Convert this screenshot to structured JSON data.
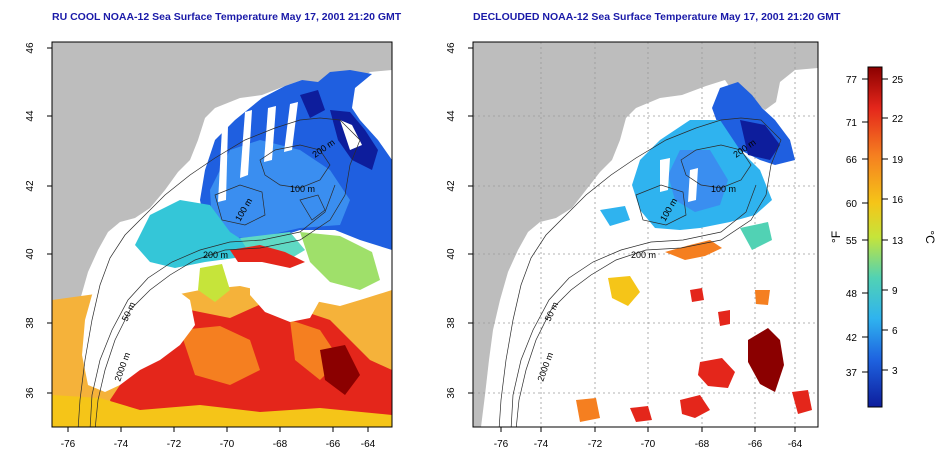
{
  "colors": {
    "land": "#bdbdbd",
    "cloud": "#ffffff",
    "text_blue": "#1a1aa8",
    "grid": "#999999"
  },
  "maps": [
    {
      "title": "RU COOL NOAA-12 Sea Surface Temperature May 17, 2001 21:20 GMT",
      "yticks": [
        "46",
        "44",
        "42",
        "40",
        "38",
        "36"
      ],
      "xticks": [
        "-76",
        "-74",
        "-72",
        "-70",
        "-68",
        "-66",
        "-64"
      ],
      "contours": [
        "200 m",
        "50 m",
        "2000 m",
        "100 m",
        "100 m",
        "200 m"
      ]
    },
    {
      "title": "DECLOUDED NOAA-12 Sea Surface Temperature May 17, 2001 21:20 GMT",
      "yticks": [
        "46",
        "44",
        "42",
        "40",
        "38",
        "36"
      ],
      "xticks": [
        "-76",
        "-74",
        "-72",
        "-70",
        "-68",
        "-66",
        "-64"
      ],
      "contours": [
        "200 m",
        "50 m",
        "2000 m",
        "100 m",
        "100 m",
        "200 m"
      ]
    }
  ],
  "colorbar": {
    "fahrenheit_unit": "°F",
    "celsius_unit": "°C",
    "fahrenheit_ticks": [
      "77",
      "71",
      "66",
      "60",
      "55",
      "48",
      "42",
      "37"
    ],
    "celsius_ticks": [
      "25",
      "22",
      "19",
      "16",
      "13",
      "9",
      "6",
      "3"
    ],
    "stops": [
      "#8b0000",
      "#e4261b",
      "#f57f20",
      "#f5c518",
      "#c6e43a",
      "#51d2b4",
      "#2fb3ef",
      "#1e63e0",
      "#0d1d9c"
    ]
  }
}
